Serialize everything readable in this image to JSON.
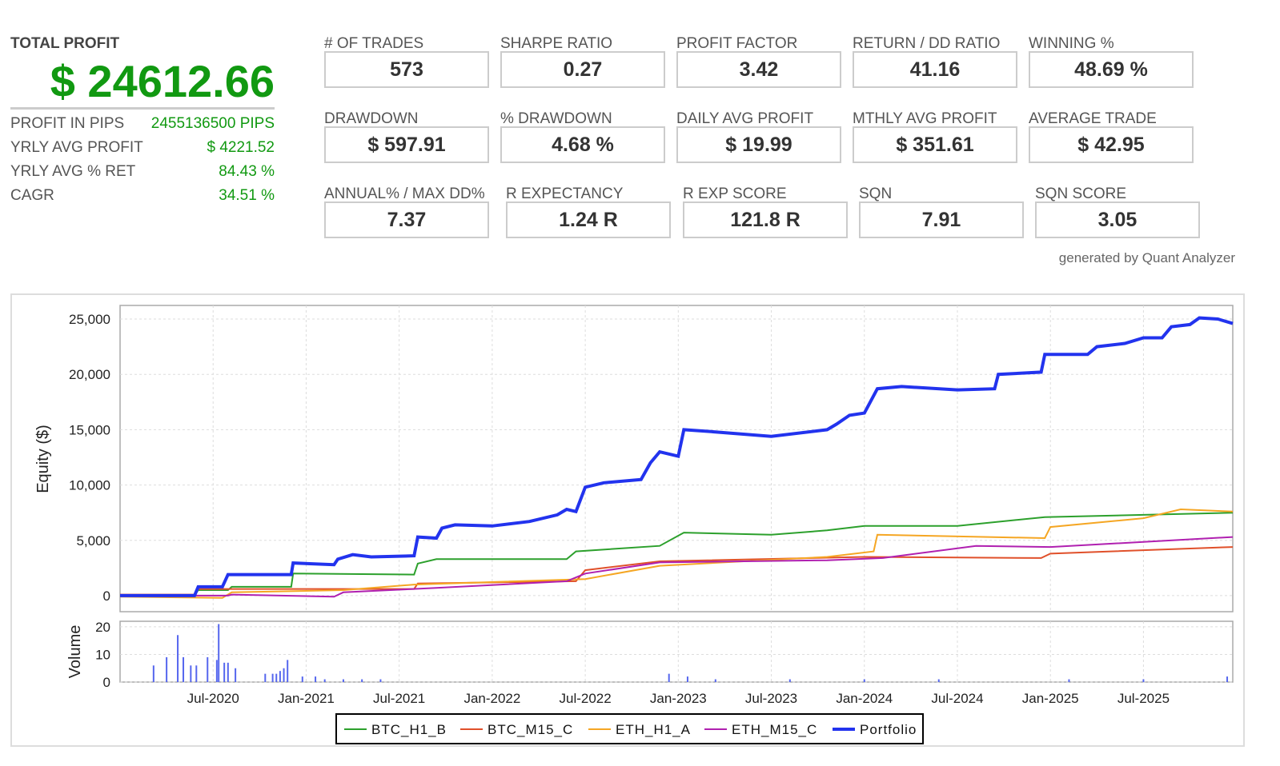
{
  "summary": {
    "total_profit_label": "TOTAL PROFIT",
    "total_profit": "$ 24612.66",
    "rows": [
      {
        "label": "PROFIT IN PIPS",
        "value": "2455136500 PIPS"
      },
      {
        "label": "YRLY AVG PROFIT",
        "value": "$ 4221.52"
      },
      {
        "label": "YRLY AVG % RET",
        "value": "84.43 %"
      },
      {
        "label": "CAGR",
        "value": "34.51 %"
      }
    ]
  },
  "metrics": [
    [
      {
        "label": "# OF TRADES",
        "value": "573"
      },
      {
        "label": "SHARPE RATIO",
        "value": "0.27"
      },
      {
        "label": "PROFIT FACTOR",
        "value": "3.42"
      },
      {
        "label": "RETURN / DD RATIO",
        "value": "41.16"
      },
      {
        "label": "WINNING %",
        "value": "48.69 %"
      }
    ],
    [
      {
        "label": "DRAWDOWN",
        "value": "$ 597.91"
      },
      {
        "label": "% DRAWDOWN",
        "value": "4.68 %"
      },
      {
        "label": "DAILY AVG PROFIT",
        "value": "$ 19.99"
      },
      {
        "label": "MTHLY AVG PROFIT",
        "value": "$ 351.61"
      },
      {
        "label": "AVERAGE TRADE",
        "value": "$ 42.95"
      }
    ],
    [
      {
        "label": "ANNUAL% / MAX DD%",
        "value": "7.37"
      },
      {
        "label": "R EXPECTANCY",
        "value": "1.24 R"
      },
      {
        "label": "R EXP SCORE",
        "value": "121.8 R"
      },
      {
        "label": "SQN",
        "value": "7.91"
      },
      {
        "label": "SQN SCORE",
        "value": "3.05"
      }
    ]
  ],
  "generated_by": "generated by Quant Analyzer",
  "chart_data": {
    "type": "line",
    "ylabel": "Equity ($)",
    "vol_label": "Volume",
    "xlim": [
      2020.0,
      2025.98
    ],
    "ylim": [
      -1450,
      26230
    ],
    "vol_ylim": [
      0,
      22
    ],
    "yticks": [
      0,
      5000,
      10000,
      15000,
      20000,
      25000
    ],
    "ytick_labels": [
      "0",
      "5,000",
      "10,000",
      "15,000",
      "20,000",
      "25,000"
    ],
    "vol_ticks": [
      0,
      10,
      20
    ],
    "vol_tick_labels": [
      "0",
      "10",
      "20"
    ],
    "xticks": [
      2020.5,
      2021,
      2021.5,
      2022,
      2022.5,
      2023,
      2023.5,
      2024,
      2024.5,
      2025,
      2025.5
    ],
    "xtick_labels": [
      "Jul-2020",
      "Jan-2021",
      "Jul-2021",
      "Jan-2022",
      "Jul-2022",
      "Jan-2023",
      "Jul-2023",
      "Jan-2024",
      "Jul-2024",
      "Jan-2025",
      "Jul-2025"
    ],
    "series": [
      {
        "name": "BTC_H1_B",
        "color": "#2ca02c",
        "points": [
          [
            2020,
            0
          ],
          [
            2020.4,
            0
          ],
          [
            2020.42,
            500
          ],
          [
            2020.58,
            500
          ],
          [
            2020.6,
            800
          ],
          [
            2020.92,
            800
          ],
          [
            2020.93,
            2000
          ],
          [
            2021.58,
            1900
          ],
          [
            2021.6,
            2900
          ],
          [
            2021.7,
            3300
          ],
          [
            2022.4,
            3300
          ],
          [
            2022.45,
            4000
          ],
          [
            2022.9,
            4500
          ],
          [
            2023.03,
            5700
          ],
          [
            2023.5,
            5500
          ],
          [
            2023.8,
            5900
          ],
          [
            2024.0,
            6300
          ],
          [
            2024.5,
            6300
          ],
          [
            2024.97,
            7100
          ],
          [
            2025.5,
            7300
          ],
          [
            2025.98,
            7500
          ]
        ]
      },
      {
        "name": "BTC_M15_C",
        "color": "#e0502a",
        "points": [
          [
            2020,
            100
          ],
          [
            2020.4,
            100
          ],
          [
            2020.42,
            600
          ],
          [
            2021.58,
            600
          ],
          [
            2021.6,
            1100
          ],
          [
            2022.45,
            1300
          ],
          [
            2022.5,
            2300
          ],
          [
            2022.9,
            3100
          ],
          [
            2024.0,
            3500
          ],
          [
            2024.95,
            3400
          ],
          [
            2025.0,
            3800
          ],
          [
            2025.98,
            4400
          ]
        ]
      },
      {
        "name": "ETH_H1_A",
        "color": "#f5a623",
        "points": [
          [
            2020,
            -100
          ],
          [
            2020.55,
            -200
          ],
          [
            2020.6,
            300
          ],
          [
            2021.2,
            500
          ],
          [
            2021.58,
            1000
          ],
          [
            2022.5,
            1500
          ],
          [
            2022.9,
            2700
          ],
          [
            2023.8,
            3500
          ],
          [
            2024.05,
            4000
          ],
          [
            2024.07,
            5500
          ],
          [
            2024.97,
            5200
          ],
          [
            2025.0,
            6200
          ],
          [
            2025.5,
            7000
          ],
          [
            2025.7,
            7800
          ],
          [
            2025.98,
            7600
          ]
        ]
      },
      {
        "name": "ETH_M15_C",
        "color": "#b020b0",
        "points": [
          [
            2020,
            0
          ],
          [
            2020.58,
            0
          ],
          [
            2020.6,
            100
          ],
          [
            2021.15,
            -100
          ],
          [
            2021.2,
            300
          ],
          [
            2021.7,
            700
          ],
          [
            2022.4,
            1300
          ],
          [
            2022.5,
            2000
          ],
          [
            2022.9,
            3000
          ],
          [
            2023.8,
            3200
          ],
          [
            2024.1,
            3400
          ],
          [
            2024.6,
            4500
          ],
          [
            2025.0,
            4400
          ],
          [
            2025.98,
            5300
          ]
        ]
      },
      {
        "name": "Portfolio",
        "color": "#2233ee",
        "width": 4,
        "points": [
          [
            2020,
            0
          ],
          [
            2020.4,
            0
          ],
          [
            2020.42,
            800
          ],
          [
            2020.55,
            800
          ],
          [
            2020.58,
            1900
          ],
          [
            2020.92,
            1900
          ],
          [
            2020.93,
            2950
          ],
          [
            2021.15,
            2800
          ],
          [
            2021.17,
            3300
          ],
          [
            2021.25,
            3700
          ],
          [
            2021.35,
            3500
          ],
          [
            2021.58,
            3600
          ],
          [
            2021.6,
            5300
          ],
          [
            2021.7,
            5200
          ],
          [
            2021.73,
            6100
          ],
          [
            2021.8,
            6400
          ],
          [
            2022.0,
            6300
          ],
          [
            2022.2,
            6700
          ],
          [
            2022.35,
            7300
          ],
          [
            2022.4,
            7800
          ],
          [
            2022.45,
            7600
          ],
          [
            2022.5,
            9800
          ],
          [
            2022.6,
            10200
          ],
          [
            2022.8,
            10500
          ],
          [
            2022.85,
            12000
          ],
          [
            2022.9,
            13000
          ],
          [
            2023.0,
            12600
          ],
          [
            2023.03,
            15000
          ],
          [
            2023.2,
            14800
          ],
          [
            2023.5,
            14400
          ],
          [
            2023.8,
            15000
          ],
          [
            2023.85,
            15500
          ],
          [
            2023.92,
            16300
          ],
          [
            2024.0,
            16500
          ],
          [
            2024.07,
            18700
          ],
          [
            2024.2,
            18900
          ],
          [
            2024.5,
            18600
          ],
          [
            2024.7,
            18700
          ],
          [
            2024.72,
            20000
          ],
          [
            2024.95,
            20200
          ],
          [
            2024.97,
            21800
          ],
          [
            2025.2,
            21800
          ],
          [
            2025.25,
            22500
          ],
          [
            2025.4,
            22800
          ],
          [
            2025.5,
            23300
          ],
          [
            2025.6,
            23300
          ],
          [
            2025.65,
            24300
          ],
          [
            2025.75,
            24500
          ],
          [
            2025.8,
            25100
          ],
          [
            2025.9,
            25000
          ],
          [
            2025.98,
            24600
          ]
        ]
      }
    ],
    "volume": [
      [
        2020.18,
        6
      ],
      [
        2020.25,
        9
      ],
      [
        2020.31,
        17
      ],
      [
        2020.34,
        9
      ],
      [
        2020.38,
        6
      ],
      [
        2020.41,
        6
      ],
      [
        2020.47,
        9
      ],
      [
        2020.52,
        8
      ],
      [
        2020.53,
        21
      ],
      [
        2020.56,
        7
      ],
      [
        2020.58,
        7
      ],
      [
        2020.62,
        5
      ],
      [
        2020.78,
        3
      ],
      [
        2020.82,
        3
      ],
      [
        2020.84,
        3
      ],
      [
        2020.86,
        4
      ],
      [
        2020.88,
        5
      ],
      [
        2020.9,
        8
      ],
      [
        2020.98,
        2
      ],
      [
        2021.05,
        2
      ],
      [
        2021.1,
        1
      ],
      [
        2021.2,
        1
      ],
      [
        2021.3,
        1
      ],
      [
        2021.4,
        1
      ],
      [
        2022.95,
        3
      ],
      [
        2023.05,
        2
      ],
      [
        2023.2,
        1
      ],
      [
        2023.6,
        1
      ],
      [
        2024.0,
        1
      ],
      [
        2024.4,
        1
      ],
      [
        2025.1,
        1
      ],
      [
        2025.5,
        1
      ],
      [
        2025.95,
        2
      ]
    ]
  }
}
